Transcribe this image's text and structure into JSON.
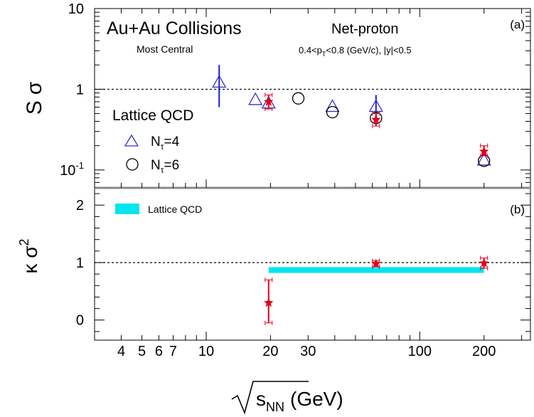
{
  "chart_data": [
    {
      "panel_label": "(a)",
      "type": "scatter",
      "ylabel_main": "S",
      "ylabel_sym": "σ",
      "yscale": "log",
      "ylim": [
        0.06,
        10
      ],
      "xscale": "log",
      "xlim": [
        3,
        330
      ],
      "yticks": [
        {
          "value": 10,
          "base": "10",
          "exp": ""
        },
        {
          "value": 1,
          "base": "1",
          "exp": ""
        },
        {
          "value": 0.1,
          "base": "10",
          "exp": "-1"
        }
      ],
      "reference_line": 1,
      "annotations": {
        "title": "Au+Au Collisions",
        "centrality": "Most Central",
        "species": "Net-proton",
        "cuts_a": "0.4<p",
        "cuts_sub": "T",
        "cuts_b": "<0.8 (GeV/c), |y|<0.5"
      },
      "legend": {
        "title": "Lattice QCD",
        "entries": [
          {
            "marker": "triangle",
            "label_main": "N",
            "label_sub": "τ",
            "label_rest": "=4"
          },
          {
            "marker": "circle",
            "label_main": "N",
            "label_sub": "τ",
            "label_rest": "=6"
          }
        ]
      },
      "series": [
        {
          "marker": "triangle",
          "color": "#3333cc",
          "points": [
            {
              "x": 11.5,
              "y": 1.2,
              "ylo": 0.6,
              "yhi": 2.0
            },
            {
              "x": 17.0,
              "y": 0.73
            },
            {
              "x": 19.6,
              "y": 0.66
            },
            {
              "x": 39,
              "y": 0.6
            },
            {
              "x": 62.4,
              "y": 0.6,
              "ylo": 0.36,
              "yhi": 0.85
            },
            {
              "x": 200,
              "y": 0.13
            }
          ]
        },
        {
          "marker": "circle",
          "color": "#000000",
          "points": [
            {
              "x": 27,
              "y": 0.77
            },
            {
              "x": 39,
              "y": 0.52
            },
            {
              "x": 62.4,
              "y": 0.44
            },
            {
              "x": 200,
              "y": 0.13
            }
          ]
        },
        {
          "marker": "star",
          "color": "#e3001b",
          "points": [
            {
              "x": 19.6,
              "y": 0.7,
              "ylo": 0.57,
              "yhi": 0.85
            },
            {
              "x": 62.4,
              "y": 0.42,
              "ylo": 0.35,
              "yhi": 0.5
            },
            {
              "x": 200,
              "y": 0.17,
              "ylo": 0.15,
              "yhi": 0.2
            }
          ]
        }
      ]
    },
    {
      "panel_label": "(b)",
      "type": "scatter",
      "ylabel_main": "κ σ",
      "ylabel_exp": "2",
      "yscale": "linear",
      "ylim": [
        -0.35,
        2.3
      ],
      "xscale": "log",
      "xlim": [
        3,
        330
      ],
      "yticks": [
        {
          "value": 0,
          "label": "0"
        },
        {
          "value": 1,
          "label": "1"
        },
        {
          "value": 2,
          "label": "2"
        }
      ],
      "xticks": [
        {
          "value": 4,
          "label": "4"
        },
        {
          "value": 5,
          "label": "5"
        },
        {
          "value": 6,
          "label": "6"
        },
        {
          "value": 7,
          "label": "7"
        },
        {
          "value": 10,
          "label": "10"
        },
        {
          "value": 20,
          "label": "20"
        },
        {
          "value": 30,
          "label": "30"
        },
        {
          "value": 100,
          "label": "100"
        },
        {
          "value": 200,
          "label": "200"
        }
      ],
      "reference_line": 1,
      "legend": {
        "entries": [
          {
            "marker": "band",
            "color": "#00e5ee",
            "label": "Lattice QCD"
          }
        ]
      },
      "band": {
        "xmin": 19.6,
        "xmax": 200,
        "ymin": 0.82,
        "ymax": 0.92,
        "color": "#00e5ee"
      },
      "series": [
        {
          "marker": "star",
          "color": "#e3001b",
          "points": [
            {
              "x": 19.6,
              "y": 0.3,
              "ylo": -0.05,
              "yhi": 0.7
            },
            {
              "x": 62.4,
              "y": 0.98,
              "ylo": 0.93,
              "yhi": 1.03
            },
            {
              "x": 200,
              "y": 0.99,
              "ylo": 0.9,
              "yhi": 1.08
            }
          ]
        }
      ],
      "xlabel_main": "s",
      "xlabel_sub": "NN",
      "xlabel_unit": "(GeV)"
    }
  ]
}
